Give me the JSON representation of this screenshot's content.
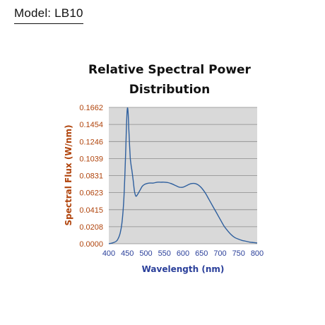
{
  "header": {
    "model_label": "Model: LB10"
  },
  "chart_data": {
    "type": "line",
    "title_lines": [
      "Relative Spectral Power",
      "Distribution"
    ],
    "xlabel": "Wavelength (nm)",
    "ylabel": "Spectral Flux (W/nm)",
    "xlim": [
      400,
      800
    ],
    "ylim": [
      0,
      0.1662
    ],
    "x_ticks": [
      400,
      450,
      500,
      550,
      600,
      650,
      700,
      750,
      800
    ],
    "y_ticks": [
      "0.0000",
      "0.0208",
      "0.0415",
      "0.0623",
      "0.0831",
      "0.1039",
      "0.1246",
      "0.1454",
      "0.1662"
    ],
    "grid": "horizontal",
    "legend": "none",
    "colors": {
      "plot_bg": "#d9d9d9",
      "grid": "#8a8a8a",
      "line": "#2e5f9e",
      "y_axis_text": "#b0440c",
      "x_axis_text": "#2a3f9a"
    },
    "series": [
      {
        "x": [
          400,
          410,
          420,
          425,
          430,
          435,
          440,
          443,
          446,
          448,
          450,
          452,
          454,
          456,
          458,
          460,
          462,
          465,
          468,
          470,
          473,
          476,
          480,
          485,
          490,
          495,
          500,
          510,
          520,
          530,
          540,
          550,
          560,
          570,
          580,
          590,
          600,
          610,
          620,
          630,
          640,
          650,
          660,
          670,
          680,
          690,
          700,
          710,
          720,
          730,
          740,
          750,
          760,
          770,
          780,
          790,
          800
        ],
        "values": [
          0.0,
          0.001,
          0.003,
          0.006,
          0.012,
          0.024,
          0.05,
          0.08,
          0.12,
          0.148,
          0.165,
          0.16,
          0.14,
          0.12,
          0.104,
          0.096,
          0.09,
          0.08,
          0.068,
          0.062,
          0.058,
          0.059,
          0.062,
          0.066,
          0.07,
          0.072,
          0.073,
          0.074,
          0.074,
          0.075,
          0.075,
          0.075,
          0.0745,
          0.073,
          0.071,
          0.069,
          0.069,
          0.071,
          0.073,
          0.0735,
          0.072,
          0.068,
          0.062,
          0.054,
          0.046,
          0.038,
          0.03,
          0.022,
          0.016,
          0.011,
          0.0075,
          0.0055,
          0.004,
          0.003,
          0.002,
          0.0015,
          0.001
        ]
      }
    ]
  }
}
